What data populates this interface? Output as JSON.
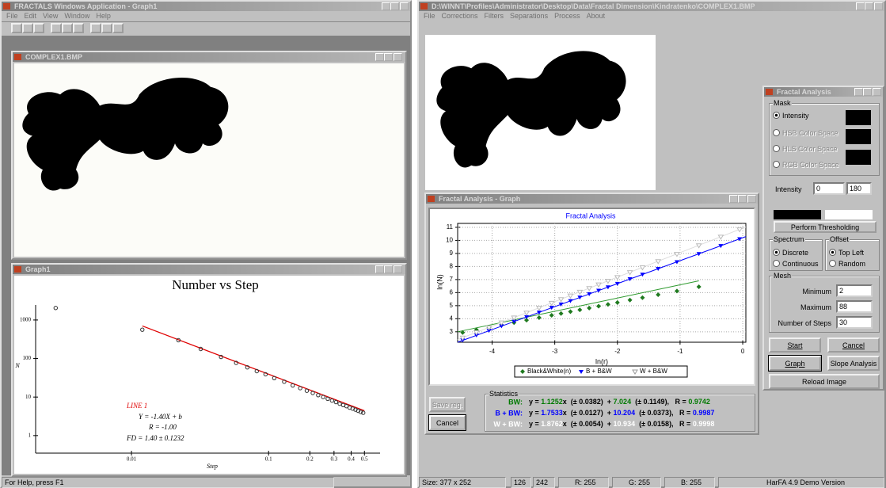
{
  "left_app": {
    "title": "FRACTALS Windows Application - Graph1",
    "menu": [
      "File",
      "Edit",
      "View",
      "Window",
      "Help"
    ],
    "image_window_title": "COMPLEX1.BMP",
    "graph_window_title": "Graph1",
    "status": "For Help, press F1"
  },
  "right_app": {
    "title": "D:\\WINNT\\Profiles\\Administrator\\Desktop\\Data\\Fractal Dimension\\Kindratenko\\COMPLEX1.BMP",
    "menu": [
      "File",
      "Corrections",
      "Filters",
      "Separations",
      "Process",
      "About"
    ],
    "graph_window": {
      "title": "Fractal Analysis - Graph",
      "save_button": "Save reg.",
      "cancel_button": "Cancel",
      "statistics": {
        "title": "Statistics",
        "y_eq": "y =",
        "x_pm": "x  (± ",
        "close_plus": ")  + ",
        "open_pm": "  (± ",
        "close_r": "),   R = ",
        "rows": [
          {
            "label": "BW:",
            "color": "#007a00",
            "slope": 1.1252,
            "slope_err": 0.0382,
            "intercept": 7.024,
            "intercept_err": 0.1149,
            "r": 0.9742
          },
          {
            "label": "B + BW:",
            "color": "#0000ff",
            "slope": 1.7533,
            "slope_err": 0.0127,
            "intercept": 10.204,
            "intercept_err": 0.0373,
            "r": 0.9987
          },
          {
            "label": "W + BW:",
            "color": "#ffffff",
            "slope": 1.8762,
            "slope_err": 0.0054,
            "intercept": 10.934,
            "intercept_err": 0.0158,
            "r": 0.9998
          }
        ]
      }
    },
    "panel": {
      "title": "Fractal Analysis",
      "mask": "Mask",
      "mask_options": [
        "Intensity",
        "HSB Color Space",
        "HLS Color Space",
        "RGB Color Space"
      ],
      "intensity_label": "Intensity",
      "intensity_min": 0,
      "intensity_max": 180,
      "threshold_button": "Perform Thresholding",
      "spectrum": "Spectrum",
      "spectrum_options": [
        "Discrete",
        "Continuous"
      ],
      "offset": "Offset",
      "offset_options": [
        "Top Left",
        "Random"
      ],
      "mesh": "Mesh",
      "minimum_label": "Minimum",
      "minimum": 2,
      "maximum_label": "Maximum",
      "maximum": 88,
      "steps_label": "Number of Steps",
      "steps": 30,
      "buttons": [
        "Start",
        "Cancel",
        "Graph",
        "Slope Analysis",
        "Reload Image"
      ]
    },
    "status": {
      "size": "Size: 377 x 252",
      "x": 126,
      "y": 242,
      "r": "R: 255",
      "g": "G: 255",
      "b": "B: 255",
      "version": "HarFA 4.9 Demo Version"
    }
  },
  "chart_data": [
    {
      "type": "scatter",
      "title": "Number vs Step",
      "x_label": "Step",
      "y_label": "N",
      "log_x": true,
      "log_y": true,
      "xlim": [
        0.002,
        0.65
      ],
      "ylim": [
        0.35,
        8000
      ],
      "xticks": [
        0.01,
        0.1,
        0.2,
        0.3,
        0.4,
        0.5
      ],
      "yticks": [
        1,
        10,
        100,
        1000
      ],
      "color": "#333333",
      "x": [
        0.0028,
        0.012,
        0.022,
        0.032,
        0.045,
        0.058,
        0.07,
        0.082,
        0.095,
        0.11,
        0.13,
        0.15,
        0.17,
        0.19,
        0.21,
        0.23,
        0.25,
        0.27,
        0.29,
        0.31,
        0.33,
        0.35,
        0.37,
        0.39,
        0.41,
        0.43,
        0.45,
        0.47,
        0.49
      ],
      "values": [
        2050,
        560,
        299,
        177,
        110,
        77,
        59,
        47,
        39,
        31,
        25,
        20,
        17,
        14.6,
        12.7,
        11.2,
        10,
        9,
        8.1,
        7.4,
        6.7,
        6.2,
        5.8,
        5.3,
        5,
        4.7,
        4.4,
        4.1,
        3.9
      ],
      "fit_x": [
        0.012,
        0.5
      ],
      "fit_y": [
        700,
        4.4
      ],
      "fit_color": "#e00000",
      "annotations": [
        "LINE 1",
        "Y = -1.40X + b",
        "R = -1.00",
        "FD = 1.40 ± 0.1232"
      ],
      "annotation_colors": [
        "#e00000",
        "#000000",
        "#000000",
        "#000000"
      ]
    },
    {
      "type": "scatter",
      "title": "Fractal Analysis",
      "title_color": "#0000ff",
      "x_label": "ln(r)",
      "y_label": "ln(N)",
      "grid": true,
      "xlim": [
        -4.55,
        0.05
      ],
      "ylim": [
        2.2,
        11.3
      ],
      "xticks": [
        -4,
        -3,
        -2,
        -1,
        0
      ],
      "yticks": [
        3,
        4,
        5,
        6,
        7,
        8,
        9,
        10,
        11
      ],
      "x": [
        -4.47,
        -4.25,
        -4.05,
        -3.85,
        -3.65,
        -3.45,
        -3.25,
        -3.05,
        -2.9,
        -2.75,
        -2.6,
        -2.45,
        -2.3,
        -2.15,
        -2.0,
        -1.8,
        -1.6,
        -1.35,
        -1.05,
        -0.7,
        -0.35,
        -0.05
      ],
      "series": [
        {
          "name": "Black&White(n)",
          "color": "#1f7a1f",
          "line_color": "#2e9a2e",
          "marker": "diamond",
          "values": [
            2.94,
            3.15,
            3.33,
            3.52,
            3.7,
            3.89,
            4.08,
            4.26,
            4.4,
            4.54,
            4.68,
            4.82,
            4.96,
            5.1,
            5.24,
            5.43,
            5.61,
            5.84,
            6.12,
            6.45,
            null,
            null
          ],
          "fit_x": [
            -4.55,
            -0.7
          ],
          "fit_y": [
            3.0,
            6.9
          ]
        },
        {
          "name": "B + B&W",
          "color": "#0000ff",
          "line_color": "#0000ff",
          "marker": "triangle",
          "values": [
            2.37,
            2.75,
            3.1,
            3.45,
            3.8,
            4.15,
            4.5,
            4.86,
            5.12,
            5.38,
            5.65,
            5.91,
            6.17,
            6.43,
            6.7,
            7.05,
            7.4,
            7.84,
            8.36,
            8.98,
            9.59,
            10.12
          ],
          "fit_x": [
            -4.55,
            0.05
          ],
          "fit_y": [
            2.2,
            10.29
          ]
        },
        {
          "name": "W + B&W",
          "color": "#ffffff",
          "line_color": "#dddddd",
          "marker": "triangle",
          "values": [
            2.55,
            2.96,
            3.33,
            3.71,
            4.09,
            4.46,
            4.84,
            5.21,
            5.49,
            5.77,
            6.06,
            6.34,
            6.62,
            6.9,
            7.18,
            7.56,
            7.93,
            8.4,
            8.96,
            9.62,
            10.28,
            10.84
          ],
          "fit_x": [
            -4.55,
            0.05
          ],
          "fit_y": [
            2.4,
            11.03
          ]
        }
      ]
    }
  ]
}
